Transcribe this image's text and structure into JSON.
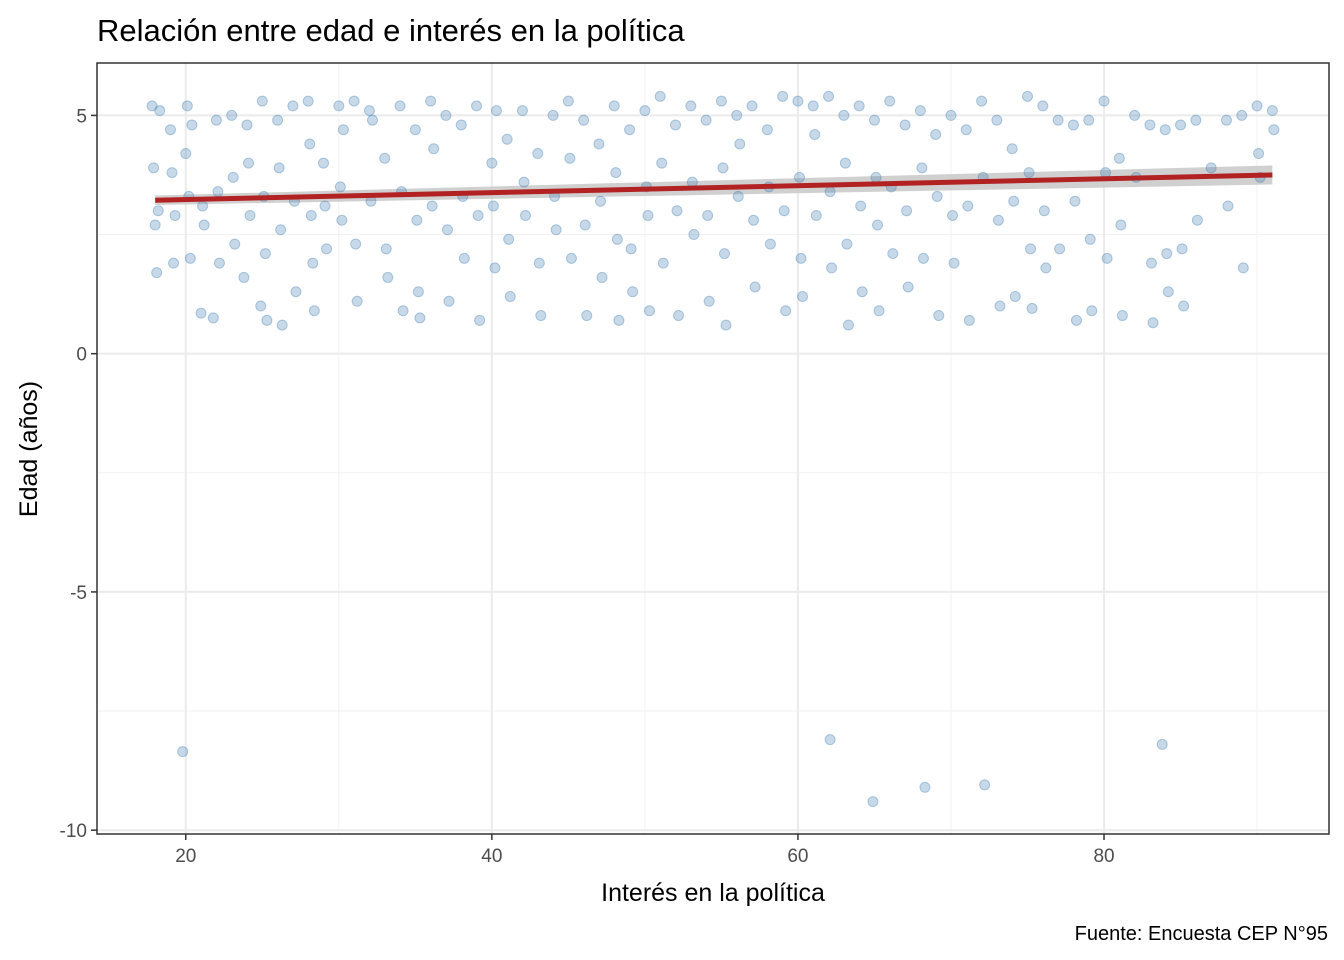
{
  "chart_data": {
    "type": "scatter",
    "title": "Relación entre edad e interés en la política",
    "xlabel": "Interés en la política",
    "ylabel": "Edad (años)",
    "caption": "Fuente: Encuesta CEP N°95",
    "xlim": [
      14.2,
      94.7
    ],
    "ylim": [
      -10.08,
      6.1
    ],
    "x_ticks": [
      20,
      40,
      60,
      80
    ],
    "x_tick_labels": [
      "20",
      "40",
      "60",
      "80"
    ],
    "y_ticks": [
      -10,
      -5,
      0,
      5
    ],
    "y_tick_labels": [
      "-10",
      "-5",
      "0",
      "5"
    ],
    "grid": true,
    "point_color": "#4682B4",
    "line_color": "#B22222",
    "band_color": "#C8C8C8",
    "trend": {
      "method": "lm",
      "x": [
        18,
        91
      ],
      "y": [
        3.22,
        3.75
      ],
      "se_lower": [
        3.12,
        3.55
      ],
      "se_upper": [
        3.32,
        3.95
      ]
    },
    "points": [
      [
        17.8,
        5.2
      ],
      [
        17.9,
        3.9
      ],
      [
        18,
        2.7
      ],
      [
        18.1,
        1.7
      ],
      [
        18.2,
        3.0
      ],
      [
        18.3,
        5.1
      ],
      [
        19,
        4.7
      ],
      [
        19.1,
        3.8
      ],
      [
        19.2,
        1.9
      ],
      [
        19.3,
        2.9
      ],
      [
        19.8,
        -8.35
      ],
      [
        20,
        4.2
      ],
      [
        20.1,
        5.2
      ],
      [
        20.2,
        3.3
      ],
      [
        20.3,
        2.0
      ],
      [
        20.4,
        4.8
      ],
      [
        21,
        0.85
      ],
      [
        21.1,
        3.1
      ],
      [
        21.2,
        2.7
      ],
      [
        21.8,
        0.75
      ],
      [
        22,
        4.9
      ],
      [
        22.1,
        3.4
      ],
      [
        22.2,
        1.9
      ],
      [
        23,
        5.0
      ],
      [
        23.1,
        3.7
      ],
      [
        23.2,
        2.3
      ],
      [
        23.8,
        1.6
      ],
      [
        24,
        4.8
      ],
      [
        24.1,
        4.0
      ],
      [
        24.2,
        2.9
      ],
      [
        24.9,
        1.0
      ],
      [
        25,
        5.3
      ],
      [
        25.1,
        3.3
      ],
      [
        25.2,
        2.1
      ],
      [
        25.3,
        0.7
      ],
      [
        26,
        4.9
      ],
      [
        26.1,
        3.9
      ],
      [
        26.2,
        2.6
      ],
      [
        26.3,
        0.6
      ],
      [
        27,
        5.2
      ],
      [
        27.1,
        3.2
      ],
      [
        27.2,
        1.3
      ],
      [
        28,
        5.3
      ],
      [
        28.1,
        4.4
      ],
      [
        28.2,
        2.9
      ],
      [
        28.3,
        1.9
      ],
      [
        28.4,
        0.9
      ],
      [
        29,
        4.0
      ],
      [
        29.1,
        3.1
      ],
      [
        29.2,
        2.2
      ],
      [
        30,
        5.2
      ],
      [
        30.1,
        3.5
      ],
      [
        30.2,
        2.8
      ],
      [
        30.3,
        4.7
      ],
      [
        31,
        5.3
      ],
      [
        31.1,
        2.3
      ],
      [
        31.2,
        1.1
      ],
      [
        32,
        5.1
      ],
      [
        32.1,
        3.2
      ],
      [
        32.2,
        4.9
      ],
      [
        33,
        4.1
      ],
      [
        33.1,
        2.2
      ],
      [
        33.2,
        1.6
      ],
      [
        34,
        5.2
      ],
      [
        34.1,
        3.4
      ],
      [
        34.2,
        0.9
      ],
      [
        35,
        4.7
      ],
      [
        35.1,
        2.8
      ],
      [
        35.2,
        1.3
      ],
      [
        35.3,
        0.75
      ],
      [
        36,
        5.3
      ],
      [
        36.1,
        3.1
      ],
      [
        36.2,
        4.3
      ],
      [
        37,
        5.0
      ],
      [
        37.1,
        2.6
      ],
      [
        37.2,
        1.1
      ],
      [
        38,
        4.8
      ],
      [
        38.1,
        3.3
      ],
      [
        38.2,
        2.0
      ],
      [
        39,
        5.2
      ],
      [
        39.1,
        2.9
      ],
      [
        39.2,
        0.7
      ],
      [
        40,
        4.0
      ],
      [
        40.1,
        3.1
      ],
      [
        40.2,
        1.8
      ],
      [
        40.3,
        5.1
      ],
      [
        41,
        4.5
      ],
      [
        41.1,
        2.4
      ],
      [
        41.2,
        1.2
      ],
      [
        42,
        5.1
      ],
      [
        42.1,
        3.6
      ],
      [
        42.2,
        2.9
      ],
      [
        43,
        4.2
      ],
      [
        43.1,
        1.9
      ],
      [
        43.2,
        0.8
      ],
      [
        44,
        5.0
      ],
      [
        44.1,
        3.3
      ],
      [
        44.2,
        2.6
      ],
      [
        45,
        5.3
      ],
      [
        45.1,
        4.1
      ],
      [
        45.2,
        2.0
      ],
      [
        46,
        4.9
      ],
      [
        46.1,
        2.7
      ],
      [
        46.2,
        0.8
      ],
      [
        47,
        4.4
      ],
      [
        47.1,
        3.2
      ],
      [
        47.2,
        1.6
      ],
      [
        48,
        5.2
      ],
      [
        48.1,
        3.8
      ],
      [
        48.2,
        2.4
      ],
      [
        48.3,
        0.7
      ],
      [
        49,
        4.7
      ],
      [
        49.1,
        2.2
      ],
      [
        49.2,
        1.3
      ],
      [
        50,
        5.1
      ],
      [
        50.1,
        3.5
      ],
      [
        50.2,
        2.9
      ],
      [
        50.3,
        0.9
      ],
      [
        51,
        5.4
      ],
      [
        51.1,
        4.0
      ],
      [
        51.2,
        1.9
      ],
      [
        52,
        4.8
      ],
      [
        52.1,
        3.0
      ],
      [
        52.2,
        0.8
      ],
      [
        53,
        5.2
      ],
      [
        53.1,
        3.6
      ],
      [
        53.2,
        2.5
      ],
      [
        54,
        4.9
      ],
      [
        54.1,
        2.9
      ],
      [
        54.2,
        1.1
      ],
      [
        55,
        5.3
      ],
      [
        55.1,
        3.9
      ],
      [
        55.2,
        2.1
      ],
      [
        55.3,
        0.6
      ],
      [
        56,
        5.0
      ],
      [
        56.1,
        3.3
      ],
      [
        56.2,
        4.4
      ],
      [
        57,
        5.2
      ],
      [
        57.1,
        2.8
      ],
      [
        57.2,
        1.4
      ],
      [
        58,
        4.7
      ],
      [
        58.1,
        3.5
      ],
      [
        58.2,
        2.3
      ],
      [
        59,
        5.4
      ],
      [
        59.1,
        3.0
      ],
      [
        59.2,
        0.9
      ],
      [
        60,
        5.3
      ],
      [
        60.1,
        3.7
      ],
      [
        60.2,
        2.0
      ],
      [
        60.3,
        1.2
      ],
      [
        61,
        5.2
      ],
      [
        61.1,
        4.6
      ],
      [
        61.2,
        2.9
      ],
      [
        62,
        5.4
      ],
      [
        62.1,
        3.4
      ],
      [
        62.2,
        1.8
      ],
      [
        62.1,
        -8.1
      ],
      [
        63,
        5.0
      ],
      [
        63.1,
        4.0
      ],
      [
        63.2,
        2.3
      ],
      [
        63.3,
        0.6
      ],
      [
        64,
        5.2
      ],
      [
        64.1,
        3.1
      ],
      [
        64.2,
        1.3
      ],
      [
        64.9,
        -9.4
      ],
      [
        65,
        4.9
      ],
      [
        65.1,
        3.7
      ],
      [
        65.2,
        2.7
      ],
      [
        65.3,
        0.9
      ],
      [
        66,
        5.3
      ],
      [
        66.1,
        3.5
      ],
      [
        66.2,
        2.1
      ],
      [
        67,
        4.8
      ],
      [
        67.1,
        3.0
      ],
      [
        67.2,
        1.4
      ],
      [
        68,
        5.1
      ],
      [
        68.1,
        3.9
      ],
      [
        68.2,
        2.0
      ],
      [
        68.3,
        -9.1
      ],
      [
        69,
        4.6
      ],
      [
        69.1,
        3.3
      ],
      [
        69.2,
        0.8
      ],
      [
        70,
        5.0
      ],
      [
        70.1,
        2.9
      ],
      [
        70.2,
        1.9
      ],
      [
        71,
        4.7
      ],
      [
        71.1,
        3.1
      ],
      [
        71.2,
        0.7
      ],
      [
        72,
        5.3
      ],
      [
        72.1,
        3.7
      ],
      [
        72.2,
        -9.05
      ],
      [
        73,
        4.9
      ],
      [
        73.1,
        2.8
      ],
      [
        73.2,
        1.0
      ],
      [
        74,
        4.3
      ],
      [
        74.1,
        3.2
      ],
      [
        74.2,
        1.2
      ],
      [
        75,
        5.4
      ],
      [
        75.1,
        3.8
      ],
      [
        75.2,
        2.2
      ],
      [
        75.3,
        0.95
      ],
      [
        76,
        5.2
      ],
      [
        76.1,
        3.0
      ],
      [
        76.2,
        1.8
      ],
      [
        77,
        4.9
      ],
      [
        77.1,
        2.2
      ],
      [
        78,
        4.8
      ],
      [
        78.1,
        3.2
      ],
      [
        78.2,
        0.7
      ],
      [
        79,
        4.9
      ],
      [
        79.1,
        2.4
      ],
      [
        79.2,
        0.9
      ],
      [
        80,
        5.3
      ],
      [
        80.1,
        3.8
      ],
      [
        80.2,
        2.0
      ],
      [
        81,
        4.1
      ],
      [
        81.1,
        2.7
      ],
      [
        81.2,
        0.8
      ],
      [
        82,
        5.0
      ],
      [
        82.1,
        3.7
      ],
      [
        83,
        4.8
      ],
      [
        83.1,
        1.9
      ],
      [
        83.2,
        0.65
      ],
      [
        83.8,
        -8.2
      ],
      [
        84,
        4.7
      ],
      [
        84.1,
        2.1
      ],
      [
        84.2,
        1.3
      ],
      [
        85,
        4.8
      ],
      [
        85.1,
        2.2
      ],
      [
        85.2,
        1.0
      ],
      [
        86,
        4.9
      ],
      [
        86.1,
        2.8
      ],
      [
        87,
        3.9
      ],
      [
        88,
        4.9
      ],
      [
        88.1,
        3.1
      ],
      [
        89,
        5.0
      ],
      [
        89.1,
        1.8
      ],
      [
        90,
        5.2
      ],
      [
        90.1,
        4.2
      ],
      [
        90.2,
        3.7
      ],
      [
        91,
        5.1
      ],
      [
        91.1,
        4.7
      ]
    ]
  }
}
